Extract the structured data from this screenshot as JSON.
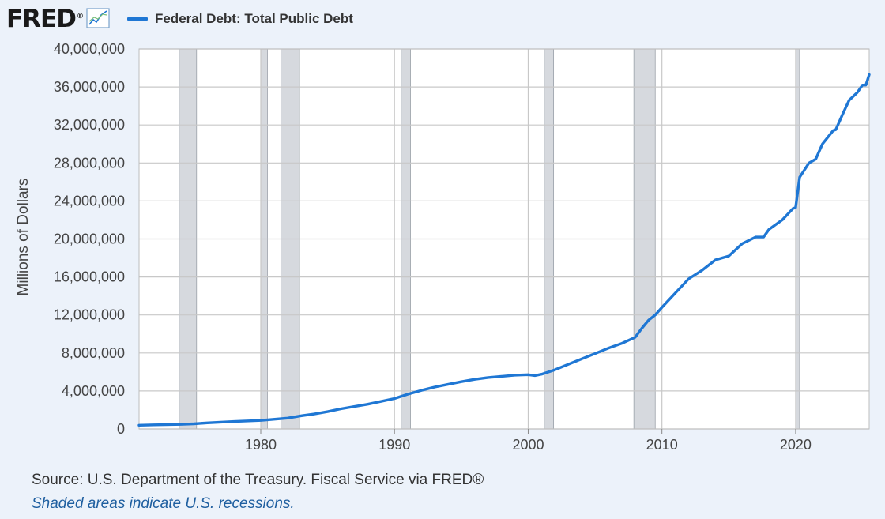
{
  "logo": {
    "text": "FRED",
    "mark": "®",
    "icon": "trend-chart-icon"
  },
  "colors": {
    "line": "#1f77d4",
    "recession": "#d6d9de",
    "grid": "#c8c8c8",
    "plot_bg": "#ffffff",
    "page_bg": "#ecf2fa"
  },
  "chart_data": {
    "type": "line",
    "title": "",
    "xlabel": "",
    "ylabel": "Millions of Dollars",
    "xlim": [
      1970.9,
      2025.5
    ],
    "ylim": [
      0,
      40000000
    ],
    "x_ticks": [
      1980,
      1990,
      2000,
      2010,
      2020
    ],
    "y_ticks": [
      0,
      4000000,
      8000000,
      12000000,
      16000000,
      20000000,
      24000000,
      28000000,
      32000000,
      36000000,
      40000000
    ],
    "y_tick_labels": [
      "0",
      "4,000,000",
      "8,000,000",
      "12,000,000",
      "16,000,000",
      "20,000,000",
      "24,000,000",
      "28,000,000",
      "32,000,000",
      "36,000,000",
      "40,000,000"
    ],
    "grid": true,
    "legend": "top-left",
    "recessions": [
      [
        1973.9,
        1975.2
      ],
      [
        1980.0,
        1980.5
      ],
      [
        1981.5,
        1982.9
      ],
      [
        1990.5,
        1991.2
      ],
      [
        2001.2,
        2001.9
      ],
      [
        2007.9,
        2009.5
      ],
      [
        2020.0,
        2020.3
      ]
    ],
    "series": [
      {
        "name": "Federal Debt: Total Public Debt",
        "x": [
          1970.9,
          1972,
          1974,
          1975,
          1976,
          1978,
          1980,
          1982,
          1983,
          1984,
          1985,
          1986,
          1988,
          1990,
          1991,
          1992,
          1993,
          1994,
          1995,
          1996,
          1997,
          1998,
          1999,
          2000,
          2000.5,
          2001,
          2002,
          2003,
          2004,
          2005,
          2006,
          2007,
          2008,
          2008.5,
          2009,
          2009.5,
          2010,
          2011,
          2012,
          2013,
          2014,
          2015,
          2016,
          2017,
          2017.6,
          2018,
          2019,
          2019.8,
          2020,
          2020.3,
          2021,
          2021.5,
          2022,
          2022.8,
          2023,
          2023.5,
          2024,
          2024.6,
          2025,
          2025.25,
          2025.5
        ],
        "values": [
          390000,
          430000,
          480000,
          540000,
          640000,
          780000,
          900000,
          1140000,
          1380000,
          1570000,
          1820000,
          2120000,
          2600000,
          3200000,
          3660000,
          4060000,
          4410000,
          4690000,
          4970000,
          5220000,
          5410000,
          5530000,
          5660000,
          5710000,
          5620000,
          5760000,
          6230000,
          6800000,
          7380000,
          7930000,
          8510000,
          9010000,
          9650000,
          10600000,
          11450000,
          12000000,
          12800000,
          14300000,
          15800000,
          16700000,
          17800000,
          18200000,
          19500000,
          20200000,
          20200000,
          21000000,
          22000000,
          23200000,
          23300000,
          26500000,
          28000000,
          28400000,
          30000000,
          31400000,
          31500000,
          33100000,
          34600000,
          35400000,
          36200000,
          36200000,
          37300000
        ]
      }
    ]
  },
  "footer": {
    "source": "Source: U.S. Department of the Treasury. Fiscal Service via FRED®",
    "note": "Shaded areas indicate U.S. recessions."
  }
}
